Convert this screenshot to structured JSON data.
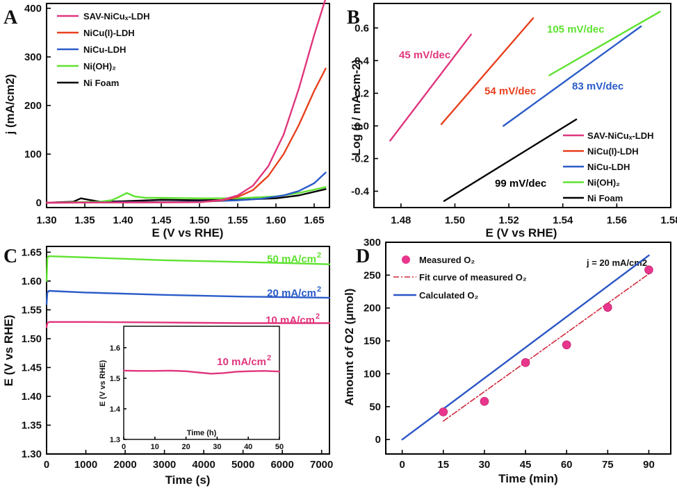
{
  "colors": {
    "sav": "#e0367d",
    "nicu_i": "#e8401e",
    "nicu": "#2a5bc8",
    "nioh": "#5ee22f",
    "foam": "#000000",
    "measured": "#e8368c",
    "fit": "#d2283c",
    "calc": "#2a55c4"
  },
  "chart_data": [
    {
      "panel": "A",
      "type": "line",
      "xlabel": "E (V vs RHE)",
      "ylabel": "j (mA/cm2)",
      "xlim": [
        1.3,
        1.67
      ],
      "ylim": [
        -10,
        410
      ],
      "xticks": [
        "1.30",
        "1.35",
        "1.40",
        "1.45",
        "1.50",
        "1.55",
        "1.60",
        "1.65"
      ],
      "yticks": [
        "0",
        "100",
        "200",
        "300",
        "400"
      ],
      "legend_position": "top-left",
      "series": [
        {
          "name": "SAV-NiCux-LDH",
          "legend": "SAV-NiCuₓ-LDH",
          "color_key": "sav",
          "x": [
            1.3,
            1.5,
            1.53,
            1.55,
            1.57,
            1.59,
            1.61,
            1.63,
            1.65,
            1.665
          ],
          "y": [
            0,
            1,
            6,
            15,
            35,
            75,
            140,
            235,
            345,
            420
          ]
        },
        {
          "name": "NiCu(I)-LDH",
          "legend": "NiCu(I)-LDH",
          "color_key": "nicu_i",
          "x": [
            1.3,
            1.5,
            1.53,
            1.55,
            1.57,
            1.59,
            1.61,
            1.63,
            1.65,
            1.665
          ],
          "y": [
            0,
            1,
            5,
            12,
            26,
            55,
            100,
            160,
            230,
            276
          ]
        },
        {
          "name": "NiCu-LDH",
          "legend": "NiCu-LDH",
          "color_key": "nicu",
          "x": [
            1.3,
            1.5,
            1.55,
            1.58,
            1.61,
            1.63,
            1.65,
            1.665
          ],
          "y": [
            0,
            2,
            5,
            8,
            15,
            24,
            40,
            62
          ]
        },
        {
          "name": "Ni(OH)2",
          "legend": "Ni(OH)₂",
          "color_key": "nioh",
          "x": [
            1.3,
            1.37,
            1.385,
            1.395,
            1.405,
            1.415,
            1.43,
            1.45,
            1.5,
            1.55,
            1.6,
            1.63,
            1.665
          ],
          "y": [
            0,
            2,
            5,
            12,
            20,
            13,
            10,
            10,
            9,
            9,
            13,
            20,
            32
          ]
        },
        {
          "name": "Ni Foam",
          "legend": "Ni Foam",
          "color_key": "foam",
          "x": [
            1.3,
            1.335,
            1.345,
            1.355,
            1.37,
            1.4,
            1.45,
            1.5,
            1.55,
            1.6,
            1.63,
            1.665
          ],
          "y": [
            0,
            2,
            9,
            6,
            2,
            3,
            6,
            5,
            6,
            9,
            15,
            28
          ]
        }
      ]
    },
    {
      "panel": "B",
      "type": "line",
      "xlabel": "E (V vs RHE)",
      "ylabel": "Log (j / mA·cm-2)",
      "xlim": [
        1.47,
        1.58
      ],
      "ylim": [
        -0.5,
        0.75
      ],
      "xticks": [
        "1.48",
        "1.50",
        "1.52",
        "1.54",
        "1.56",
        "1.58"
      ],
      "yticks": [
        "-0.4",
        "-0.2",
        "0.0",
        "0.2",
        "0.4",
        "0.6"
      ],
      "legend_position": "bottom-right",
      "series": [
        {
          "name": "SAV-NiCux-LDH",
          "legend": "SAV-NiCuₓ-LDH",
          "color_key": "sav",
          "x": [
            1.476,
            1.506
          ],
          "y": [
            -0.09,
            0.56
          ]
        },
        {
          "name": "NiCu(I)-LDH",
          "legend": "NiCu(I)-LDH",
          "color_key": "nicu_i",
          "x": [
            1.495,
            1.529
          ],
          "y": [
            0.01,
            0.66
          ]
        },
        {
          "name": "NiCu-LDH",
          "legend": "NiCu-LDH",
          "color_key": "nicu",
          "x": [
            1.518,
            1.569
          ],
          "y": [
            0.0,
            0.61
          ]
        },
        {
          "name": "Ni(OH)2",
          "legend": "Ni(OH)₂",
          "color_key": "nioh",
          "x": [
            1.535,
            1.576
          ],
          "y": [
            0.31,
            0.7
          ]
        },
        {
          "name": "Ni Foam",
          "legend": "Ni Foam",
          "color_key": "foam",
          "x": [
            1.496,
            1.545
          ],
          "y": [
            -0.46,
            0.04
          ]
        }
      ],
      "annotations": [
        {
          "text": "45 mV/dec",
          "color_key": "sav"
        },
        {
          "text": "54 mV/dec",
          "color_key": "nicu_i"
        },
        {
          "text": "105 mV/dec",
          "color_key": "nioh"
        },
        {
          "text": "83 mV/dec",
          "color_key": "nicu"
        },
        {
          "text": "99 mV/dec",
          "color_key": "foam"
        }
      ]
    },
    {
      "panel": "C",
      "type": "line",
      "xlabel": "Time (s)",
      "ylabel": "E (V vs RHE)",
      "xlim": [
        0,
        7200
      ],
      "ylim": [
        1.3,
        1.66
      ],
      "xticks": [
        "0",
        "1000",
        "2000",
        "3000",
        "4000",
        "5000",
        "6000",
        "7000"
      ],
      "yticks": [
        "1.30",
        "1.35",
        "1.40",
        "1.45",
        "1.50",
        "1.55",
        "1.60",
        "1.65"
      ],
      "series": [
        {
          "name": "50 mA/cm2",
          "label": "50 mA/cm",
          "sup": "2",
          "color_key": "nioh",
          "x": [
            0,
            20,
            60,
            1000,
            3000,
            5000,
            7200
          ],
          "y": [
            1.6,
            1.64,
            1.643,
            1.641,
            1.636,
            1.633,
            1.629
          ]
        },
        {
          "name": "20 mA/cm2",
          "label": "20 mA/cm",
          "sup": "2",
          "color_key": "nicu",
          "x": [
            0,
            20,
            60,
            1000,
            3000,
            5000,
            7200
          ],
          "y": [
            1.56,
            1.58,
            1.583,
            1.58,
            1.576,
            1.573,
            1.571
          ]
        },
        {
          "name": "10 mA/cm2",
          "label": "10 mA/cm",
          "sup": "2",
          "color_key": "sav",
          "x": [
            0,
            20,
            60,
            1000,
            3000,
            5000,
            7200
          ],
          "y": [
            1.52,
            1.527,
            1.529,
            1.529,
            1.528,
            1.527,
            1.527
          ]
        }
      ],
      "inset": {
        "type": "line",
        "xlabel": "Time (h)",
        "ylabel": "E (V vs RHE)",
        "xlim": [
          0,
          50
        ],
        "ylim": [
          1.3,
          1.67
        ],
        "xticks": [
          "0",
          "10",
          "20",
          "30",
          "40",
          "50"
        ],
        "yticks": [
          "1.3",
          "1.4",
          "1.5",
          "1.6"
        ],
        "series": [
          {
            "name": "10 mA/cm2",
            "label": "10 mA/cm",
            "sup": "2",
            "color_key": "sav",
            "x": [
              0,
              5,
              10,
              15,
              20,
              25,
              28,
              32,
              36,
              40,
              45,
              50
            ],
            "y": [
              1.525,
              1.524,
              1.524,
              1.525,
              1.523,
              1.518,
              1.515,
              1.517,
              1.521,
              1.523,
              1.524,
              1.522
            ]
          }
        ]
      }
    },
    {
      "panel": "D",
      "type": "scatter",
      "xlabel": "Time (min)",
      "ylabel": "Amount of O2 (μmol)",
      "xlim": [
        -6,
        98
      ],
      "ylim": [
        -22,
        300
      ],
      "xticks": [
        "0",
        "15",
        "30",
        "45",
        "60",
        "75",
        "90"
      ],
      "yticks": [
        "0",
        "50",
        "100",
        "150",
        "200",
        "250",
        "300"
      ],
      "annotation": "j = 20 mA/cm2",
      "series": [
        {
          "name": "Measured O2",
          "legend": "Measured O₂",
          "color_key": "measured",
          "kind": "points",
          "x": [
            15,
            30,
            45,
            60,
            75,
            90
          ],
          "y": [
            42,
            58,
            117,
            144,
            201,
            258
          ]
        },
        {
          "name": "Fit curve of measured O2",
          "legend": "Fit curve of measured O₂",
          "color_key": "fit",
          "kind": "dashdot",
          "x": [
            15,
            90
          ],
          "y": [
            28,
            252
          ]
        },
        {
          "name": "Calculated O2",
          "legend": "Calculated O₂",
          "color_key": "calc",
          "kind": "line",
          "x": [
            0,
            90
          ],
          "y": [
            0,
            280
          ]
        }
      ]
    }
  ]
}
